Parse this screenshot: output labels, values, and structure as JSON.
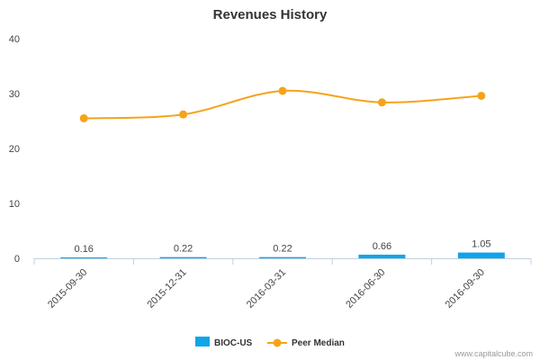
{
  "chart_data": {
    "type": "bar+line",
    "title": "Revenues History",
    "categories": [
      "2015-09-30",
      "2015-12-31",
      "2016-03-31",
      "2016-06-30",
      "2016-09-30"
    ],
    "series": [
      {
        "name": "BIOC-US",
        "type": "bar",
        "values": [
          0.16,
          0.22,
          0.22,
          0.66,
          1.05
        ],
        "labels": [
          "0.16",
          "0.22",
          "0.22",
          "0.66",
          "1.05"
        ],
        "color": "#0ea5e9"
      },
      {
        "name": "Peer Median",
        "type": "line",
        "values": [
          25.5,
          26.2,
          30.5,
          28.4,
          29.6
        ],
        "color": "#f5a31a"
      }
    ],
    "yticks": [
      "0",
      "10",
      "20",
      "30",
      "40"
    ],
    "ylim": [
      0,
      40
    ],
    "grid": false,
    "legend": "bottom-center"
  },
  "credit": "www.capitalcube.com"
}
